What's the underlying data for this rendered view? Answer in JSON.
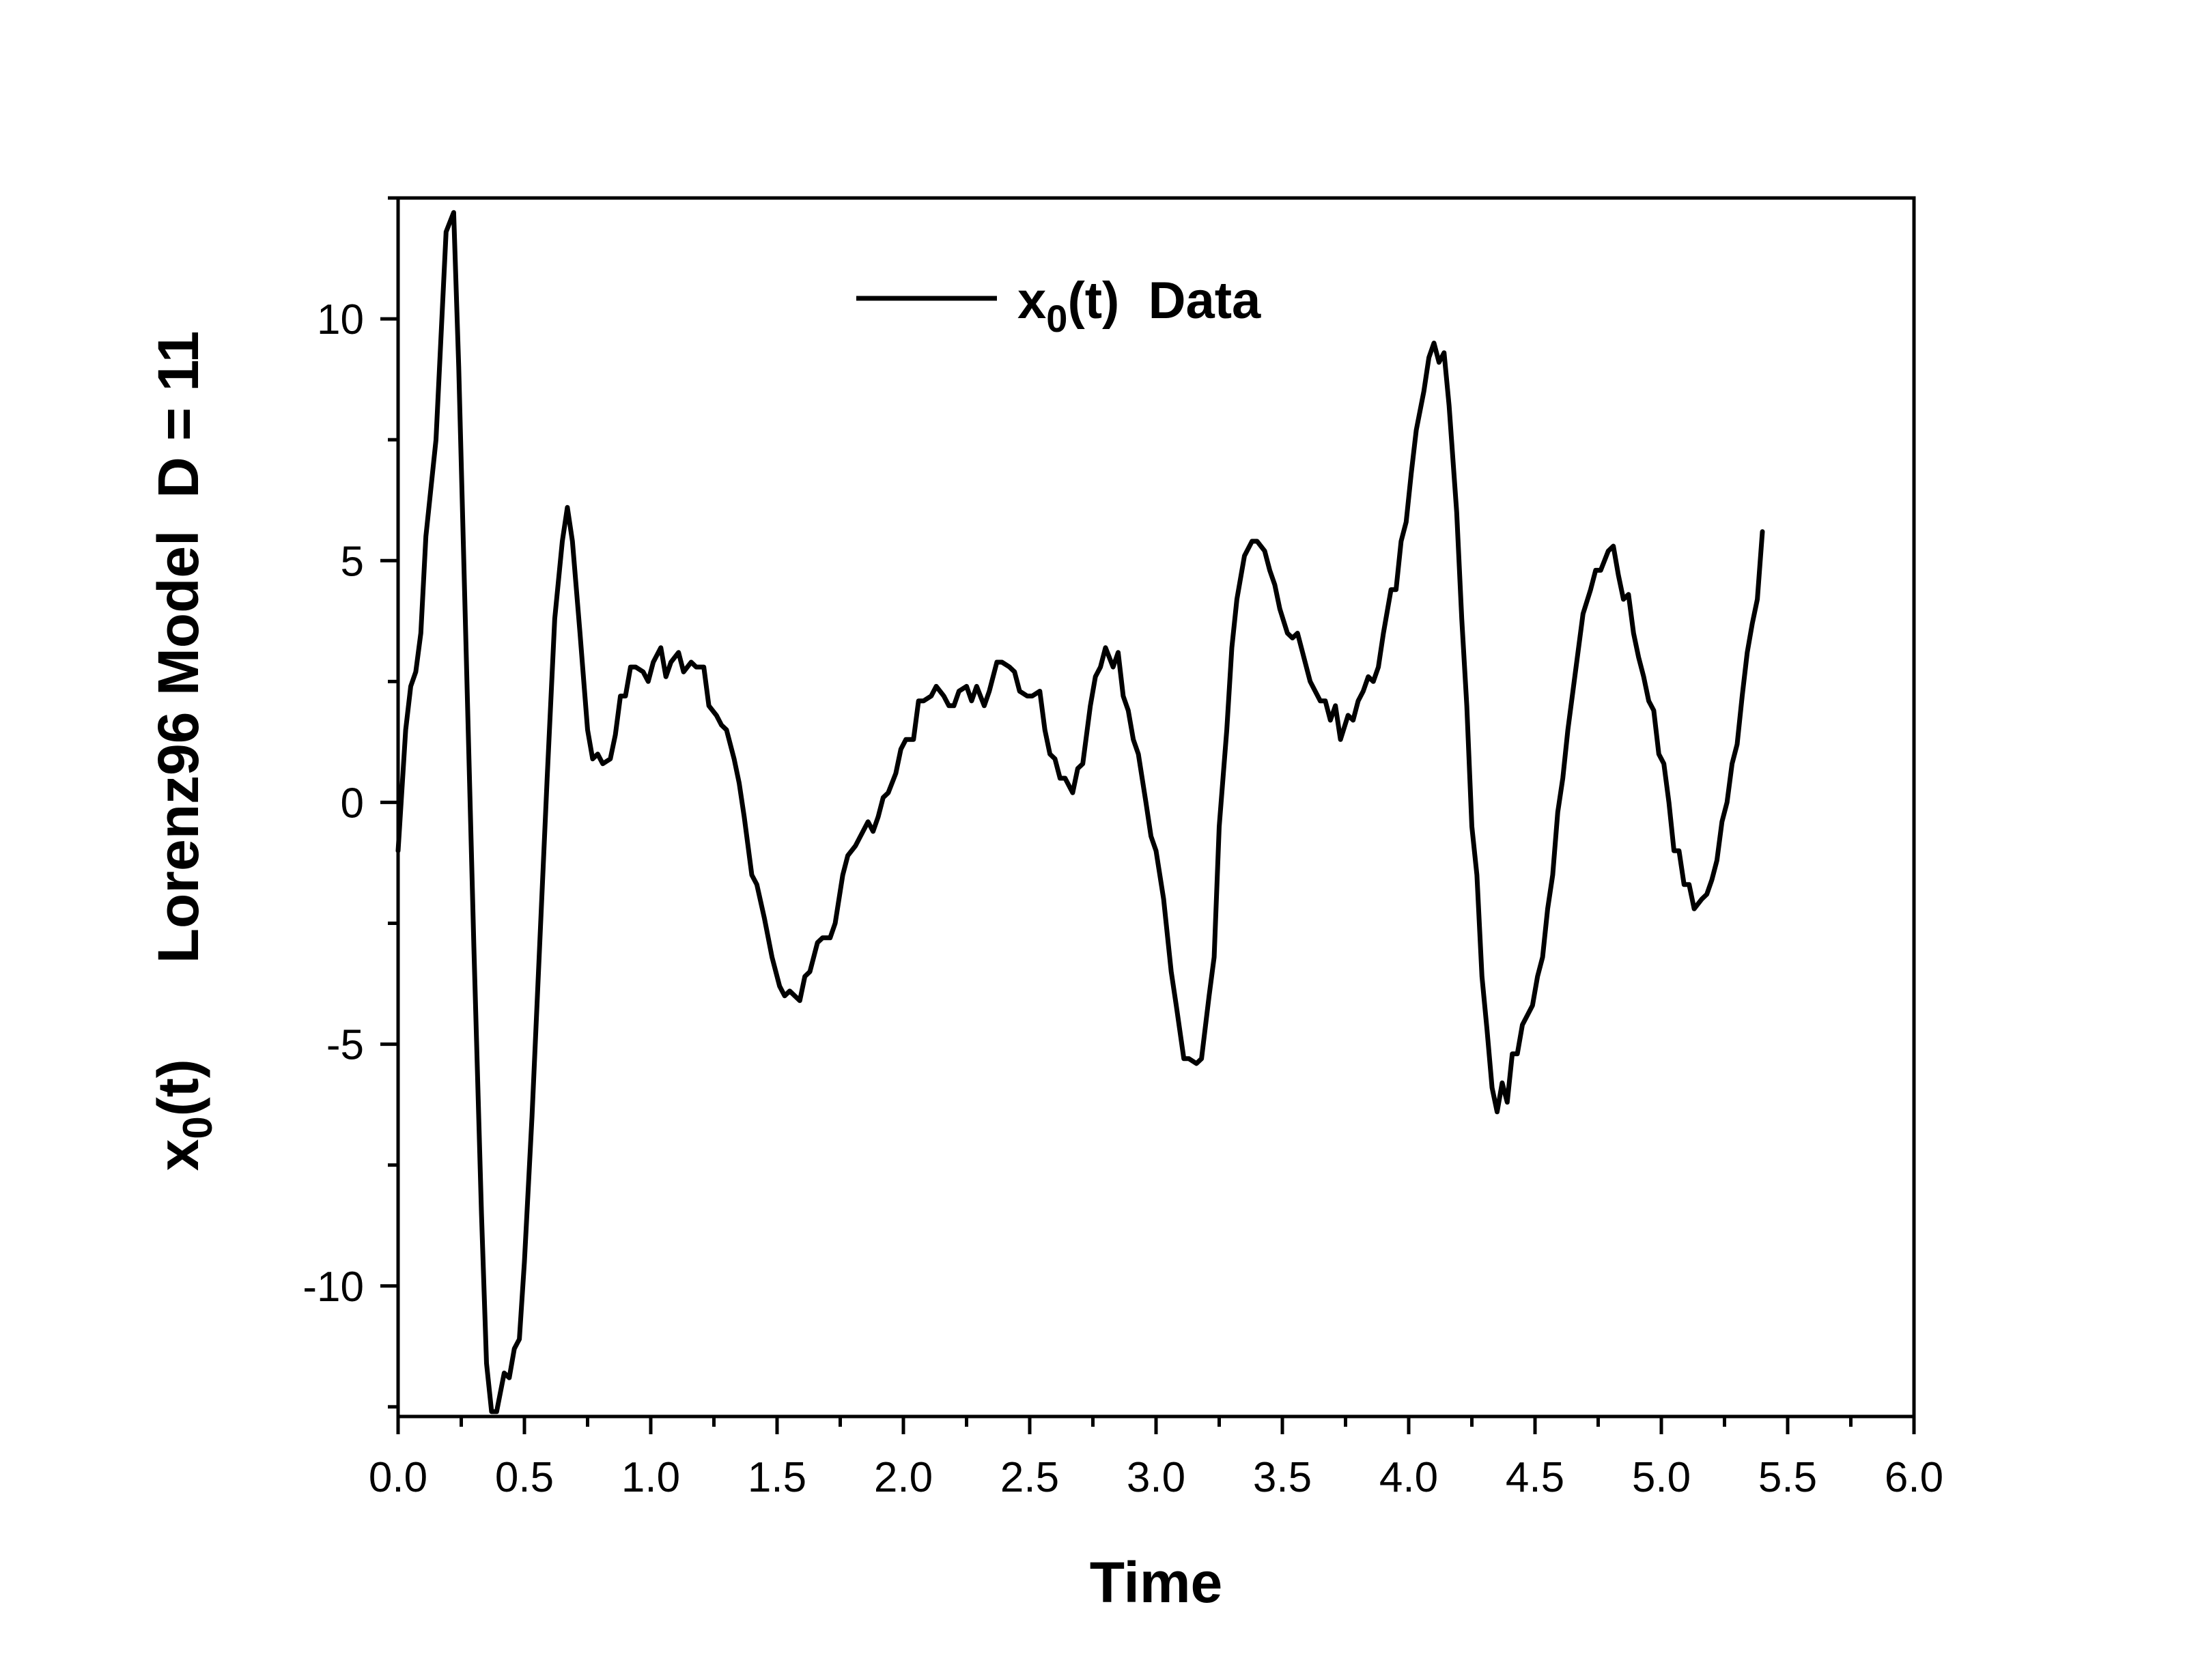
{
  "chart_data": {
    "type": "line",
    "xlabel": "Time",
    "ylabel": {
      "prefix": "x",
      "subscript": "0",
      "suffix": "(t)",
      "model": "Lorenz96 Model  D = 11"
    },
    "xlim": [
      0.0,
      6.0
    ],
    "ylim": [
      -12.7,
      12.5
    ],
    "x_ticks": [
      "0.0",
      "0.5",
      "1.0",
      "1.5",
      "2.0",
      "2.5",
      "3.0",
      "3.5",
      "4.0",
      "4.5",
      "5.0",
      "5.5",
      "6.0"
    ],
    "y_ticks": [
      "-10",
      "-5",
      "0",
      "5",
      "10"
    ],
    "grid": false,
    "legend_position": "top-center",
    "series": [
      {
        "name": {
          "prefix": "x",
          "subscript": "0",
          "suffix": "(t)  Data"
        },
        "color": "#000000",
        "points": [
          [
            0.0,
            -1.0
          ],
          [
            0.03,
            1.5
          ],
          [
            0.05,
            2.4
          ],
          [
            0.07,
            2.7
          ],
          [
            0.09,
            3.5
          ],
          [
            0.11,
            5.5
          ],
          [
            0.15,
            7.5
          ],
          [
            0.19,
            11.8
          ],
          [
            0.22,
            12.2
          ],
          [
            0.24,
            9.0
          ],
          [
            0.27,
            3.0
          ],
          [
            0.3,
            -3.0
          ],
          [
            0.33,
            -8.5
          ],
          [
            0.35,
            -11.6
          ],
          [
            0.37,
            -12.6
          ],
          [
            0.39,
            -12.6
          ],
          [
            0.42,
            -11.8
          ],
          [
            0.44,
            -11.9
          ],
          [
            0.46,
            -11.3
          ],
          [
            0.48,
            -11.1
          ],
          [
            0.5,
            -9.5
          ],
          [
            0.53,
            -6.5
          ],
          [
            0.56,
            -3.0
          ],
          [
            0.59,
            0.5
          ],
          [
            0.62,
            3.8
          ],
          [
            0.65,
            5.4
          ],
          [
            0.67,
            6.1
          ],
          [
            0.69,
            5.4
          ],
          [
            0.72,
            3.5
          ],
          [
            0.75,
            1.5
          ],
          [
            0.77,
            0.9
          ],
          [
            0.79,
            1.0
          ],
          [
            0.81,
            0.8
          ],
          [
            0.84,
            0.9
          ],
          [
            0.86,
            1.4
          ],
          [
            0.88,
            2.2
          ],
          [
            0.9,
            2.2
          ],
          [
            0.92,
            2.8
          ],
          [
            0.94,
            2.8
          ],
          [
            0.97,
            2.7
          ],
          [
            0.99,
            2.5
          ],
          [
            1.01,
            2.9
          ],
          [
            1.04,
            3.2
          ],
          [
            1.06,
            2.6
          ],
          [
            1.08,
            2.9
          ],
          [
            1.11,
            3.1
          ],
          [
            1.13,
            2.7
          ],
          [
            1.16,
            2.9
          ],
          [
            1.18,
            2.8
          ],
          [
            1.21,
            2.8
          ],
          [
            1.23,
            2.0
          ],
          [
            1.26,
            1.8
          ],
          [
            1.28,
            1.6
          ],
          [
            1.3,
            1.5
          ],
          [
            1.33,
            0.9
          ],
          [
            1.35,
            0.4
          ],
          [
            1.37,
            -0.3
          ],
          [
            1.4,
            -1.5
          ],
          [
            1.42,
            -1.7
          ],
          [
            1.45,
            -2.4
          ],
          [
            1.48,
            -3.2
          ],
          [
            1.51,
            -3.8
          ],
          [
            1.53,
            -4.0
          ],
          [
            1.55,
            -3.9
          ],
          [
            1.57,
            -4.0
          ],
          [
            1.59,
            -4.1
          ],
          [
            1.61,
            -3.6
          ],
          [
            1.63,
            -3.5
          ],
          [
            1.66,
            -2.9
          ],
          [
            1.68,
            -2.8
          ],
          [
            1.71,
            -2.8
          ],
          [
            1.73,
            -2.5
          ],
          [
            1.76,
            -1.5
          ],
          [
            1.78,
            -1.1
          ],
          [
            1.81,
            -0.9
          ],
          [
            1.83,
            -0.7
          ],
          [
            1.86,
            -0.4
          ],
          [
            1.88,
            -0.6
          ],
          [
            1.9,
            -0.3
          ],
          [
            1.92,
            0.1
          ],
          [
            1.94,
            0.2
          ],
          [
            1.97,
            0.6
          ],
          [
            1.99,
            1.1
          ],
          [
            2.01,
            1.3
          ],
          [
            2.04,
            1.3
          ],
          [
            2.06,
            2.1
          ],
          [
            2.08,
            2.1
          ],
          [
            2.11,
            2.2
          ],
          [
            2.13,
            2.4
          ],
          [
            2.16,
            2.2
          ],
          [
            2.18,
            2.0
          ],
          [
            2.2,
            2.0
          ],
          [
            2.22,
            2.3
          ],
          [
            2.25,
            2.4
          ],
          [
            2.27,
            2.1
          ],
          [
            2.29,
            2.4
          ],
          [
            2.32,
            2.0
          ],
          [
            2.34,
            2.3
          ],
          [
            2.37,
            2.9
          ],
          [
            2.39,
            2.9
          ],
          [
            2.42,
            2.8
          ],
          [
            2.44,
            2.7
          ],
          [
            2.46,
            2.3
          ],
          [
            2.49,
            2.2
          ],
          [
            2.51,
            2.2
          ],
          [
            2.54,
            2.3
          ],
          [
            2.56,
            1.5
          ],
          [
            2.58,
            1.0
          ],
          [
            2.6,
            0.9
          ],
          [
            2.62,
            0.5
          ],
          [
            2.64,
            0.5
          ],
          [
            2.67,
            0.2
          ],
          [
            2.69,
            0.7
          ],
          [
            2.71,
            0.8
          ],
          [
            2.74,
            2.0
          ],
          [
            2.76,
            2.6
          ],
          [
            2.78,
            2.8
          ],
          [
            2.8,
            3.2
          ],
          [
            2.83,
            2.8
          ],
          [
            2.85,
            3.1
          ],
          [
            2.87,
            2.2
          ],
          [
            2.89,
            1.9
          ],
          [
            2.91,
            1.3
          ],
          [
            2.93,
            1.0
          ],
          [
            2.96,
            0.0
          ],
          [
            2.98,
            -0.7
          ],
          [
            3.0,
            -1.0
          ],
          [
            3.03,
            -2.0
          ],
          [
            3.06,
            -3.5
          ],
          [
            3.08,
            -4.2
          ],
          [
            3.11,
            -5.3
          ],
          [
            3.13,
            -5.3
          ],
          [
            3.16,
            -5.4
          ],
          [
            3.18,
            -5.3
          ],
          [
            3.21,
            -4.0
          ],
          [
            3.23,
            -3.2
          ],
          [
            3.25,
            -0.5
          ],
          [
            3.28,
            1.5
          ],
          [
            3.3,
            3.2
          ],
          [
            3.32,
            4.2
          ],
          [
            3.35,
            5.1
          ],
          [
            3.38,
            5.4
          ],
          [
            3.4,
            5.4
          ],
          [
            3.43,
            5.2
          ],
          [
            3.45,
            4.8
          ],
          [
            3.47,
            4.5
          ],
          [
            3.49,
            4.0
          ],
          [
            3.52,
            3.5
          ],
          [
            3.54,
            3.4
          ],
          [
            3.56,
            3.5
          ],
          [
            3.58,
            3.1
          ],
          [
            3.61,
            2.5
          ],
          [
            3.63,
            2.3
          ],
          [
            3.65,
            2.1
          ],
          [
            3.67,
            2.1
          ],
          [
            3.69,
            1.7
          ],
          [
            3.71,
            2.0
          ],
          [
            3.73,
            1.3
          ],
          [
            3.76,
            1.8
          ],
          [
            3.78,
            1.7
          ],
          [
            3.8,
            2.1
          ],
          [
            3.82,
            2.3
          ],
          [
            3.84,
            2.6
          ],
          [
            3.86,
            2.5
          ],
          [
            3.88,
            2.8
          ],
          [
            3.9,
            3.5
          ],
          [
            3.93,
            4.4
          ],
          [
            3.95,
            4.4
          ],
          [
            3.97,
            5.4
          ],
          [
            3.99,
            5.8
          ],
          [
            4.01,
            6.8
          ],
          [
            4.03,
            7.7
          ],
          [
            4.06,
            8.5
          ],
          [
            4.08,
            9.2
          ],
          [
            4.1,
            9.5
          ],
          [
            4.12,
            9.1
          ],
          [
            4.14,
            9.3
          ],
          [
            4.16,
            8.2
          ],
          [
            4.19,
            6.0
          ],
          [
            4.21,
            3.8
          ],
          [
            4.23,
            2.0
          ],
          [
            4.25,
            -0.5
          ],
          [
            4.27,
            -1.5
          ],
          [
            4.29,
            -3.6
          ],
          [
            4.31,
            -4.7
          ],
          [
            4.33,
            -5.9
          ],
          [
            4.35,
            -6.4
          ],
          [
            4.37,
            -5.8
          ],
          [
            4.39,
            -6.2
          ],
          [
            4.41,
            -5.2
          ],
          [
            4.43,
            -5.2
          ],
          [
            4.45,
            -4.6
          ],
          [
            4.47,
            -4.4
          ],
          [
            4.49,
            -4.2
          ],
          [
            4.51,
            -3.6
          ],
          [
            4.53,
            -3.2
          ],
          [
            4.55,
            -2.2
          ],
          [
            4.57,
            -1.5
          ],
          [
            4.59,
            -0.2
          ],
          [
            4.61,
            0.5
          ],
          [
            4.63,
            1.5
          ],
          [
            4.65,
            2.3
          ],
          [
            4.67,
            3.1
          ],
          [
            4.69,
            3.9
          ],
          [
            4.72,
            4.4
          ],
          [
            4.74,
            4.8
          ],
          [
            4.76,
            4.8
          ],
          [
            4.79,
            5.2
          ],
          [
            4.81,
            5.3
          ],
          [
            4.83,
            4.7
          ],
          [
            4.85,
            4.2
          ],
          [
            4.87,
            4.3
          ],
          [
            4.89,
            3.5
          ],
          [
            4.91,
            3.0
          ],
          [
            4.93,
            2.6
          ],
          [
            4.95,
            2.1
          ],
          [
            4.97,
            1.9
          ],
          [
            4.99,
            1.0
          ],
          [
            5.01,
            0.8
          ],
          [
            5.03,
            0.0
          ],
          [
            5.05,
            -1.0
          ],
          [
            5.07,
            -1.0
          ],
          [
            5.09,
            -1.7
          ],
          [
            5.11,
            -1.7
          ],
          [
            5.13,
            -2.2
          ],
          [
            5.16,
            -2.0
          ],
          [
            5.18,
            -1.9
          ],
          [
            5.2,
            -1.6
          ],
          [
            5.22,
            -1.2
          ],
          [
            5.24,
            -0.4
          ],
          [
            5.26,
            0.0
          ],
          [
            5.28,
            0.8
          ],
          [
            5.3,
            1.2
          ],
          [
            5.32,
            2.2
          ],
          [
            5.34,
            3.1
          ],
          [
            5.36,
            3.7
          ],
          [
            5.38,
            4.2
          ],
          [
            5.4,
            5.6
          ]
        ]
      }
    ]
  }
}
